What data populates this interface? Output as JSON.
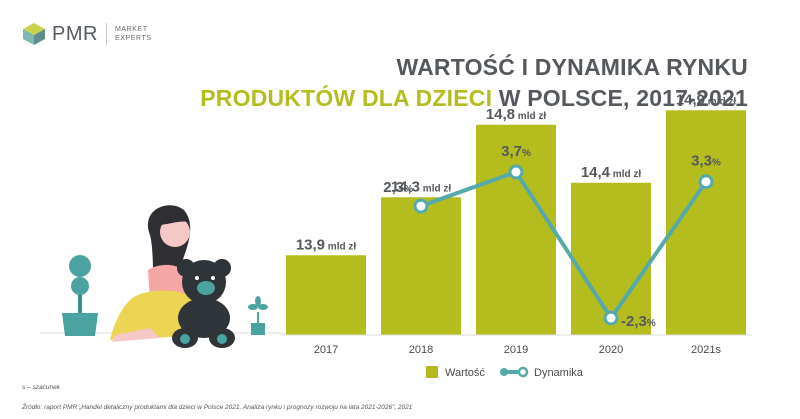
{
  "brand": {
    "name": "PMR",
    "tagline_line1": "MARKET",
    "tagline_line2": "EXPERTS",
    "colors": {
      "green": "#b5bd1e",
      "teal": "#55aaa9",
      "gray": "#55595e"
    }
  },
  "title": {
    "line1": "WARTOŚĆ I DYNAMIKA RYNKU",
    "line2_highlight": "PRODUKTÓW DLA DZIECI",
    "line2_rest": "W POLSCE, 2017-2021"
  },
  "chart_data": {
    "type": "bar",
    "categories": [
      "2017",
      "2018",
      "2019",
      "2020",
      "2021s"
    ],
    "series": [
      {
        "name": "Wartość",
        "type": "bar",
        "values": [
          13.9,
          14.3,
          14.8,
          14.4,
          14.9
        ],
        "labels": [
          "13,9",
          "14,3",
          "14,8",
          "14,4",
          "14,9"
        ],
        "unit": "mld zł",
        "color": "#b5bd1e"
      },
      {
        "name": "Dynamika",
        "type": "line",
        "values": [
          null,
          2.3,
          3.7,
          -2.3,
          3.3
        ],
        "labels": [
          "",
          "2,3",
          "3,7",
          "-2,3",
          "3,3"
        ],
        "unit": "%",
        "color": "#55aaa9"
      }
    ],
    "legend_position": "bottom-center",
    "grid": false
  },
  "footnotes": {
    "estimate": "s – szacunek",
    "source": "Źródło: raport PMR „Handel detaliczny produktami dla dzieci w Polsce 2021. Analiza rynku i prognozy rozwoju na lata 2021-2026”, 2021"
  }
}
